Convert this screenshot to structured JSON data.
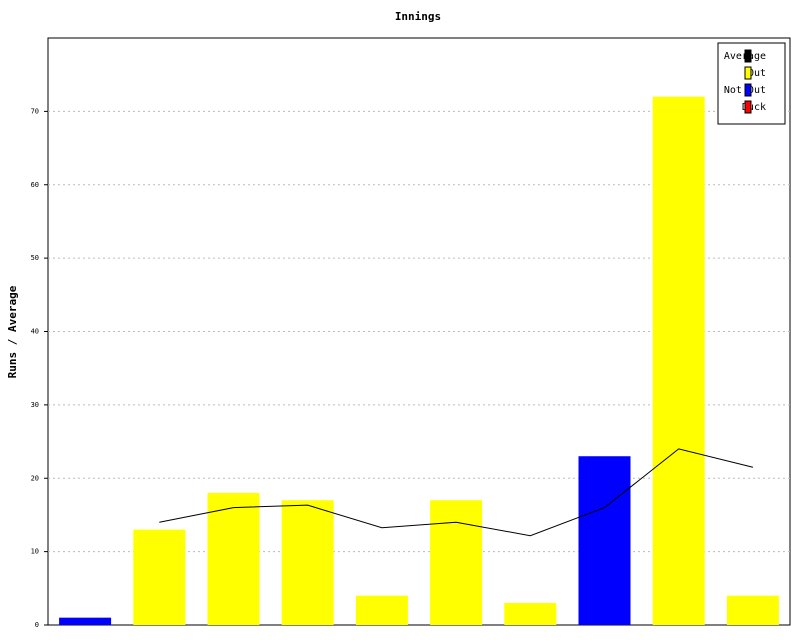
{
  "chart_data": {
    "type": "bar",
    "title": "Innings",
    "ylabel": "Runs / Average",
    "categories": [
      null,
      null,
      null,
      null,
      null,
      null,
      null,
      null,
      null,
      null
    ],
    "series": [
      {
        "name": "Average",
        "type": "line",
        "color": "#000000",
        "values": [
          null,
          14,
          16,
          16.33,
          13.25,
          14,
          12.17,
          16,
          24,
          21.5
        ]
      },
      {
        "name": "Out",
        "color": "#ffff00",
        "values": [
          null,
          13,
          18,
          17,
          4,
          17,
          3,
          null,
          72,
          4
        ]
      },
      {
        "name": "Not Out",
        "color": "#0000ff",
        "values": [
          1,
          null,
          null,
          null,
          null,
          null,
          null,
          23,
          null,
          null
        ]
      },
      {
        "name": "Duck",
        "color": "#ff0000",
        "values": [
          null,
          null,
          null,
          null,
          null,
          null,
          null,
          null,
          null,
          null
        ]
      }
    ],
    "ylim": [
      0,
      80
    ],
    "yticks": [
      0,
      10,
      20,
      30,
      40,
      50,
      60,
      70
    ],
    "grid": true,
    "legend": "top-right"
  }
}
